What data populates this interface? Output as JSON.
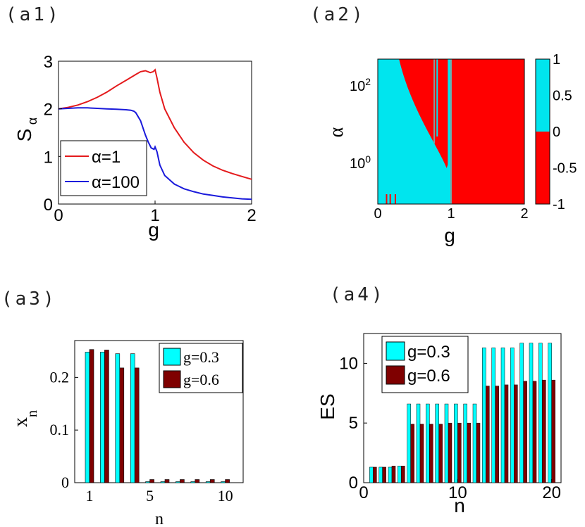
{
  "panel_labels": [
    "(a1)",
    "(a2)",
    "(a3)",
    "(a4)"
  ],
  "chart_data": [
    {
      "id": "a1",
      "type": "line",
      "xlabel": "g",
      "ylabel": "S",
      "ylabel_sub": "α",
      "xlim": [
        0,
        2
      ],
      "ylim": [
        0,
        3
      ],
      "xticks": [
        "0",
        "1",
        "2"
      ],
      "yticks": [
        "0",
        "1",
        "2",
        "3"
      ],
      "legend": [
        "α=1",
        "α=100"
      ],
      "series": [
        {
          "name": "α=1",
          "color": "#e41a1c",
          "x": [
            0,
            0.1,
            0.2,
            0.3,
            0.4,
            0.5,
            0.6,
            0.7,
            0.8,
            0.85,
            0.9,
            0.95,
            0.98,
            1.0,
            1.02,
            1.05,
            1.1,
            1.2,
            1.3,
            1.4,
            1.5,
            1.6,
            1.7,
            1.8,
            1.9,
            2.0
          ],
          "y": [
            2.0,
            2.03,
            2.08,
            2.15,
            2.24,
            2.35,
            2.48,
            2.6,
            2.72,
            2.78,
            2.8,
            2.76,
            2.78,
            2.82,
            2.65,
            2.35,
            2.0,
            1.6,
            1.3,
            1.08,
            0.92,
            0.8,
            0.71,
            0.64,
            0.58,
            0.52
          ]
        },
        {
          "name": "α=100",
          "color": "#1a1adb",
          "x": [
            0,
            0.1,
            0.2,
            0.3,
            0.4,
            0.5,
            0.6,
            0.7,
            0.75,
            0.78,
            0.8,
            0.85,
            0.9,
            0.93,
            0.96,
            0.99,
            1.0,
            1.02,
            1.05,
            1.1,
            1.2,
            1.3,
            1.4,
            1.5,
            1.6,
            1.7,
            1.8,
            1.9,
            2.0
          ],
          "y": [
            2.0,
            2.01,
            2.02,
            2.02,
            2.01,
            2.0,
            1.99,
            1.98,
            1.97,
            1.95,
            1.92,
            1.75,
            1.45,
            1.3,
            1.18,
            1.15,
            1.2,
            1.1,
            0.82,
            0.6,
            0.42,
            0.32,
            0.26,
            0.21,
            0.18,
            0.15,
            0.13,
            0.11,
            0.1
          ]
        }
      ]
    },
    {
      "id": "a2",
      "type": "heatmap",
      "xlabel": "g",
      "ylabel": "α",
      "xlim": [
        0,
        2
      ],
      "xticks": [
        "0",
        "1",
        "2"
      ],
      "yticks": [
        "10^0",
        "10^2"
      ],
      "colorbar_ticks": [
        "1",
        "0.5",
        "0",
        "-0.5",
        "-1"
      ],
      "colors": {
        "positive": "#00e5ee",
        "negative": "#ff0000",
        "boundary": "#7fa0a0"
      },
      "regions": "value +1 (cyan) for small g and small α; value -1 (red) for g>1 and in a wedge for g<1 at large α"
    },
    {
      "id": "a3",
      "type": "bar",
      "xlabel": "n",
      "ylabel": "x",
      "ylabel_sub": "n",
      "ylim": [
        0,
        0.27
      ],
      "xticks": [
        "1",
        "5",
        "10"
      ],
      "yticks": [
        "0",
        "0.1",
        "0.2"
      ],
      "categories": [
        1,
        2,
        3,
        4,
        5,
        6,
        7,
        8,
        9,
        10
      ],
      "series": [
        {
          "name": "g=0.3",
          "color": "#00ffff",
          "values": [
            0.248,
            0.248,
            0.245,
            0.245,
            0.002,
            0.002,
            0.002,
            0.002,
            0.002,
            0.002
          ]
        },
        {
          "name": "g=0.6",
          "color": "#7f0000",
          "values": [
            0.253,
            0.252,
            0.218,
            0.218,
            0.006,
            0.006,
            0.006,
            0.006,
            0.006,
            0.006
          ]
        }
      ]
    },
    {
      "id": "a4",
      "type": "bar",
      "xlabel": "n",
      "ylabel": "ES",
      "ylim": [
        0,
        12.5
      ],
      "xlim": [
        0,
        21
      ],
      "xticks": [
        "0",
        "10",
        "20"
      ],
      "yticks": [
        "0",
        "5",
        "10"
      ],
      "categories": [
        1,
        2,
        3,
        4,
        5,
        6,
        7,
        8,
        9,
        10,
        11,
        12,
        13,
        14,
        15,
        16,
        17,
        18,
        19,
        20
      ],
      "series": [
        {
          "name": "g=0.3",
          "color": "#00ffff",
          "values": [
            1.3,
            1.3,
            1.3,
            1.4,
            6.6,
            6.6,
            6.6,
            6.6,
            6.6,
            6.6,
            6.6,
            6.6,
            11.3,
            11.3,
            11.3,
            11.3,
            11.7,
            11.7,
            11.7,
            11.7
          ]
        },
        {
          "name": "g=0.6",
          "color": "#7f0000",
          "values": [
            1.3,
            1.3,
            1.4,
            1.4,
            4.9,
            4.9,
            4.9,
            4.9,
            5.0,
            5.0,
            5.0,
            5.0,
            8.1,
            8.1,
            8.2,
            8.2,
            8.5,
            8.5,
            8.6,
            8.6
          ]
        }
      ]
    }
  ]
}
